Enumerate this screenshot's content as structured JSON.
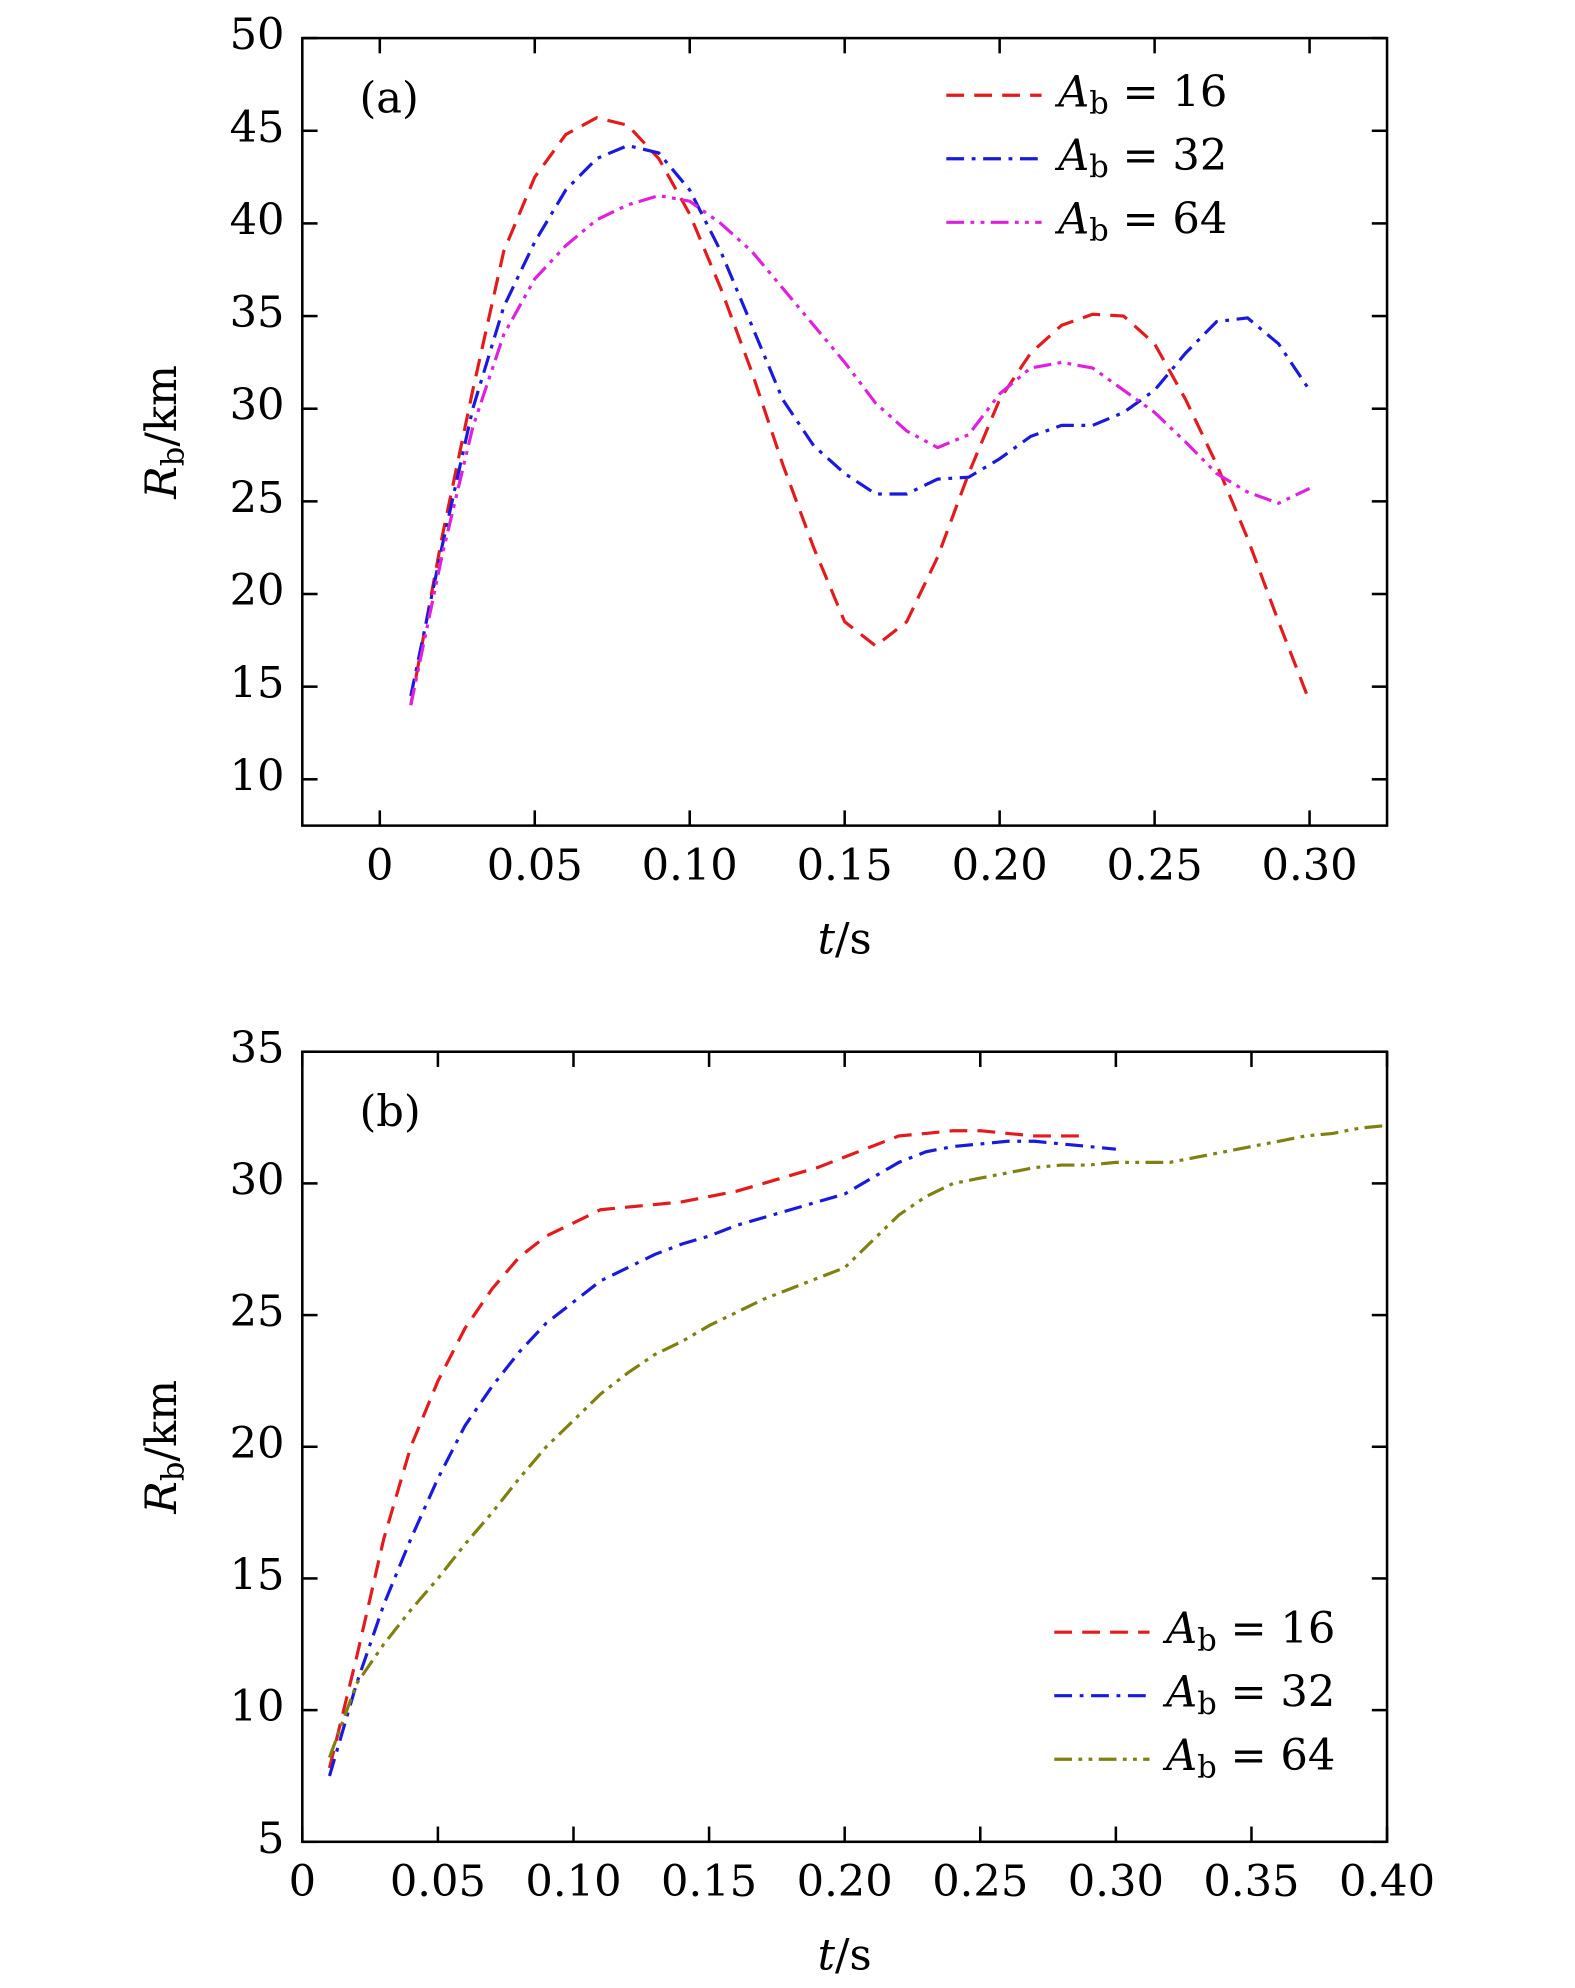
{
  "chart_data": [
    {
      "type": "line",
      "panel_label": "(a)",
      "xlabel": "t/s",
      "ylabel": "Rb/km",
      "xlim": [
        -0.025,
        0.325
      ],
      "ylim": [
        7.5,
        50
      ],
      "xticks": [
        0,
        0.05,
        {
          "value": 0.1,
          "label": "0.10"
        },
        0.15,
        {
          "value": 0.2,
          "label": "0.20"
        },
        0.25,
        {
          "value": 0.3,
          "label": "0.30"
        }
      ],
      "yticks": [
        10,
        15,
        20,
        25,
        30,
        35,
        40,
        45,
        50
      ],
      "legend": "upper right",
      "series": [
        {
          "name": "Ab = 16",
          "color": "#e41a1c",
          "dash": "dashed",
          "x": [
            0.01,
            0.02,
            0.03,
            0.04,
            0.05,
            0.06,
            0.07,
            0.08,
            0.09,
            0.1,
            0.11,
            0.12,
            0.13,
            0.14,
            0.15,
            0.16,
            0.17,
            0.18,
            0.19,
            0.2,
            0.21,
            0.22,
            0.23,
            0.24,
            0.25,
            0.26,
            0.27,
            0.28,
            0.29,
            0.3
          ],
          "values": [
            14,
            23,
            31,
            38.5,
            42.5,
            44.8,
            45.7,
            45.3,
            43.5,
            40.5,
            36.5,
            32,
            27,
            22.5,
            18.5,
            17.2,
            18.5,
            22,
            26.5,
            30.5,
            33,
            34.5,
            35.1,
            35,
            33.5,
            30.5,
            27,
            23,
            18.5,
            14.2
          ]
        },
        {
          "name": "Ab = 32",
          "color": "#1a1adc",
          "dash": "dashdot",
          "x": [
            0.01,
            0.02,
            0.03,
            0.04,
            0.05,
            0.06,
            0.07,
            0.08,
            0.09,
            0.1,
            0.11,
            0.12,
            0.13,
            0.14,
            0.15,
            0.16,
            0.17,
            0.18,
            0.19,
            0.2,
            0.21,
            0.22,
            0.23,
            0.24,
            0.25,
            0.26,
            0.27,
            0.28,
            0.29,
            0.3
          ],
          "values": [
            14.5,
            22.5,
            30,
            35.5,
            39,
            41.8,
            43.5,
            44.2,
            43.8,
            41.8,
            38.5,
            34.5,
            30.5,
            28,
            26.5,
            25.4,
            25.4,
            26.2,
            26.3,
            27.3,
            28.5,
            29.1,
            29.1,
            29.8,
            31,
            33,
            34.7,
            34.9,
            33.5,
            31
          ]
        },
        {
          "name": "Ab = 64",
          "color": "#e020e0",
          "dash": "dashdotdot",
          "x": [
            0.01,
            0.02,
            0.03,
            0.04,
            0.05,
            0.06,
            0.07,
            0.08,
            0.09,
            0.1,
            0.11,
            0.12,
            0.13,
            0.14,
            0.15,
            0.16,
            0.17,
            0.18,
            0.19,
            0.2,
            0.21,
            0.22,
            0.23,
            0.24,
            0.25,
            0.26,
            0.27,
            0.28,
            0.29,
            0.3
          ],
          "values": [
            14,
            22,
            29,
            34,
            37,
            38.8,
            40.2,
            41,
            41.5,
            41.2,
            40,
            38.5,
            36.5,
            34.5,
            32.5,
            30.3,
            28.8,
            27.9,
            28.6,
            30.8,
            32.2,
            32.5,
            32.2,
            31,
            29.8,
            28.2,
            26.5,
            25.5,
            24.9,
            25.7
          ]
        }
      ]
    },
    {
      "type": "line",
      "panel_label": "(b)",
      "xlabel": "t/s",
      "ylabel": "Rb/km",
      "xlim": [
        0,
        0.4
      ],
      "ylim": [
        5,
        35
      ],
      "xticks": [
        0,
        0.05,
        {
          "value": 0.1,
          "label": "0.10"
        },
        0.15,
        {
          "value": 0.2,
          "label": "0.20"
        },
        0.25,
        {
          "value": 0.3,
          "label": "0.30"
        },
        0.35,
        {
          "value": 0.4,
          "label": "0.40"
        }
      ],
      "yticks": [
        5,
        10,
        15,
        20,
        25,
        30,
        35
      ],
      "legend": "lower right",
      "series": [
        {
          "name": "Ab = 16",
          "color": "#e41a1c",
          "dash": "dashed",
          "x": [
            0.01,
            0.02,
            0.03,
            0.04,
            0.05,
            0.06,
            0.07,
            0.08,
            0.09,
            0.1,
            0.11,
            0.12,
            0.13,
            0.14,
            0.15,
            0.16,
            0.17,
            0.18,
            0.19,
            0.2,
            0.21,
            0.22,
            0.23,
            0.24,
            0.25,
            0.26,
            0.27,
            0.28,
            0.29
          ],
          "values": [
            7.8,
            12,
            16.5,
            20,
            22.5,
            24.5,
            26,
            27.2,
            28,
            28.5,
            29,
            29.1,
            29.2,
            29.3,
            29.5,
            29.7,
            30,
            30.3,
            30.6,
            31,
            31.4,
            31.8,
            31.9,
            32,
            32,
            31.9,
            31.8,
            31.8,
            31.8
          ]
        },
        {
          "name": "Ab = 32",
          "color": "#1a1adc",
          "dash": "dashdot",
          "x": [
            0.01,
            0.02,
            0.03,
            0.04,
            0.05,
            0.06,
            0.07,
            0.08,
            0.09,
            0.1,
            0.11,
            0.12,
            0.13,
            0.14,
            0.15,
            0.16,
            0.17,
            0.18,
            0.19,
            0.2,
            0.21,
            0.22,
            0.23,
            0.24,
            0.25,
            0.26,
            0.27,
            0.28,
            0.29,
            0.3
          ],
          "values": [
            7.5,
            11,
            14,
            16.5,
            18.8,
            20.8,
            22.3,
            23.6,
            24.7,
            25.5,
            26.3,
            26.8,
            27.3,
            27.7,
            28,
            28.4,
            28.7,
            29,
            29.3,
            29.6,
            30.2,
            30.8,
            31.2,
            31.4,
            31.5,
            31.6,
            31.6,
            31.5,
            31.4,
            31.3
          ]
        },
        {
          "name": "Ab = 64",
          "color": "#808010",
          "dash": "dashdotdot",
          "x": [
            0.01,
            0.02,
            0.03,
            0.04,
            0.05,
            0.06,
            0.07,
            0.08,
            0.09,
            0.1,
            0.11,
            0.12,
            0.13,
            0.14,
            0.15,
            0.16,
            0.17,
            0.18,
            0.19,
            0.2,
            0.21,
            0.22,
            0.23,
            0.24,
            0.25,
            0.26,
            0.27,
            0.28,
            0.29,
            0.3,
            0.31,
            0.32,
            0.33,
            0.34,
            0.35,
            0.36,
            0.37,
            0.38,
            0.39,
            0.4
          ],
          "values": [
            8.2,
            11,
            12.5,
            13.8,
            15,
            16.3,
            17.5,
            18.8,
            20,
            21,
            22,
            22.8,
            23.5,
            24,
            24.6,
            25.1,
            25.6,
            26,
            26.4,
            26.8,
            27.8,
            28.8,
            29.5,
            30,
            30.2,
            30.4,
            30.6,
            30.7,
            30.7,
            30.8,
            30.8,
            30.8,
            31,
            31.2,
            31.4,
            31.6,
            31.8,
            31.9,
            32.1,
            32.2
          ]
        }
      ]
    }
  ]
}
